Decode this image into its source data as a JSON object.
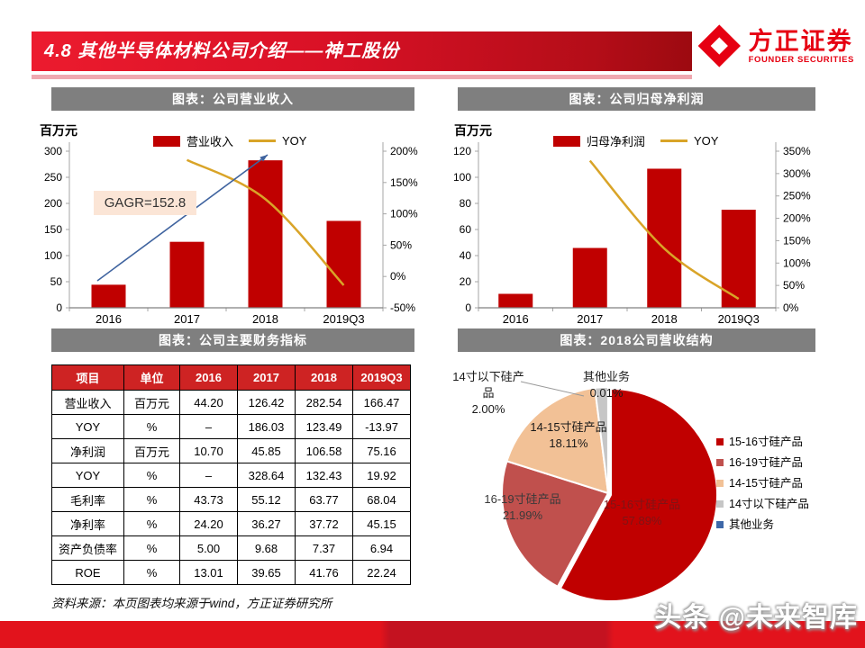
{
  "header": {
    "section_title": "4.8 其他半导体材料公司介绍——神工股份",
    "logo": {
      "name": "方正证券",
      "subtitle": "FOUNDER SECURITIES"
    }
  },
  "panels": {
    "revenue_title": "图表：公司营业收入",
    "profit_title": "图表：公司归母净利润",
    "table_title": "图表：公司主要财务指标",
    "pie_title": "图表：2018公司营收结构"
  },
  "chart_data": [
    {
      "id": "company-revenue",
      "type": "bar",
      "title": "图表：公司营业收入",
      "unit_label": "百万元",
      "categories": [
        "2016",
        "2017",
        "2018",
        "2019Q3"
      ],
      "series": [
        {
          "name": "营业收入",
          "type": "bar",
          "axis": "left",
          "values": [
            44.2,
            126.42,
            282.54,
            166.47
          ],
          "color": "#C00000"
        },
        {
          "name": "YOY",
          "type": "line",
          "axis": "right",
          "values": [
            null,
            186.03,
            123.49,
            -13.97
          ],
          "color": "#D9A428"
        }
      ],
      "left_axis": {
        "min": 0,
        "max": 300,
        "step": 50
      },
      "right_axis": {
        "min": -50,
        "max": 200,
        "step": 50,
        "suffix": "%"
      },
      "annotation": {
        "text": "GAGR=152.8"
      },
      "legend_position": "top"
    },
    {
      "id": "parent-net-profit",
      "type": "bar",
      "title": "图表：公司归母净利润",
      "unit_label": "百万元",
      "categories": [
        "2016",
        "2017",
        "2018",
        "2019Q3"
      ],
      "series": [
        {
          "name": "归母净利润",
          "type": "bar",
          "axis": "left",
          "values": [
            10.7,
            45.85,
            106.58,
            75.16
          ],
          "color": "#C00000"
        },
        {
          "name": "YOY",
          "type": "line",
          "axis": "right",
          "values": [
            null,
            328.64,
            132.43,
            19.92
          ],
          "color": "#D9A428"
        }
      ],
      "left_axis": {
        "min": 0,
        "max": 120,
        "step": 20
      },
      "right_axis": {
        "min": 0,
        "max": 350,
        "step": 50,
        "suffix": "%"
      },
      "legend_position": "top"
    },
    {
      "id": "revenue-structure-2018",
      "type": "pie",
      "title": "图表：2018公司营收结构",
      "slices": [
        {
          "label": "15-16寸硅产品",
          "value": 57.89,
          "color": "#C00000"
        },
        {
          "label": "16-19寸硅产品",
          "value": 21.99,
          "color": "#C0504D"
        },
        {
          "label": "14-15寸硅产品",
          "value": 18.11,
          "color": "#F2C196"
        },
        {
          "label": "14寸以下硅产品",
          "value": 2.0,
          "color": "#C6C6C6"
        },
        {
          "label": "其他业务",
          "value": 0.01,
          "color": "#3E68A8"
        }
      ],
      "legend_position": "right"
    }
  ],
  "table": {
    "headers": [
      "项目",
      "单位",
      "2016",
      "2017",
      "2018",
      "2019Q3"
    ],
    "rows": [
      [
        "营业收入",
        "百万元",
        "44.20",
        "126.42",
        "282.54",
        "166.47"
      ],
      [
        "YOY",
        "%",
        "–",
        "186.03",
        "123.49",
        "-13.97"
      ],
      [
        "净利润",
        "百万元",
        "10.70",
        "45.85",
        "106.58",
        "75.16"
      ],
      [
        "YOY",
        "%",
        "–",
        "328.64",
        "132.43",
        "19.92"
      ],
      [
        "毛利率",
        "%",
        "43.73",
        "55.12",
        "63.77",
        "68.04"
      ],
      [
        "净利率",
        "%",
        "24.20",
        "36.27",
        "37.72",
        "45.15"
      ],
      [
        "资产负债率",
        "%",
        "5.00",
        "9.68",
        "7.37",
        "6.94"
      ],
      [
        "ROE",
        "%",
        "13.01",
        "39.65",
        "41.76",
        "22.24"
      ]
    ]
  },
  "footer": {
    "source": "资料来源：本页图表均来源于wind，方正证券研究所",
    "watermark": "头条 @未来智库"
  },
  "colors": {
    "bar_red": "#C00000",
    "line_gold": "#D9A428",
    "arrow_blue": "#3F639F",
    "annotation_bg": "#FBE5D6",
    "table_header_red": "#CE2323",
    "titlebar_gray": "#7F7F7F",
    "banner_red": "#D91126",
    "logo_red": "#E60012"
  }
}
